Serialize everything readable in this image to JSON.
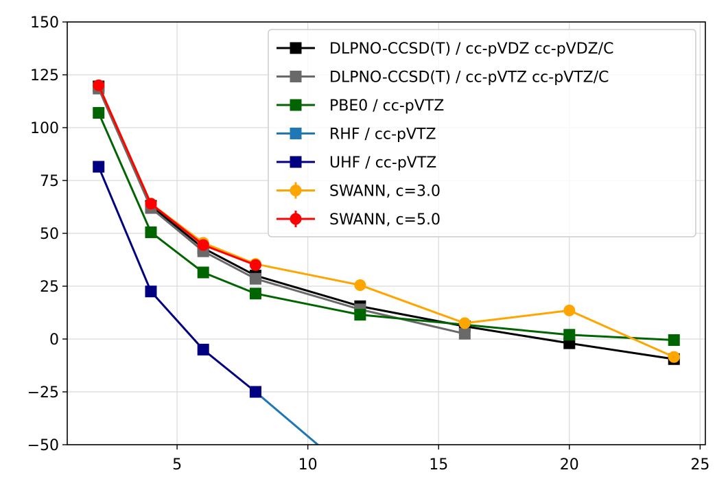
{
  "chart_data": {
    "type": "line",
    "title": "",
    "xlabel": "",
    "ylabel": "",
    "xlim": [
      0.8,
      25.2
    ],
    "ylim": [
      -50,
      150
    ],
    "xticks": [
      5,
      10,
      15,
      20,
      25
    ],
    "yticks": [
      -50,
      -25,
      0,
      25,
      50,
      75,
      100,
      125,
      150
    ],
    "xtick_labels": [
      "5",
      "10",
      "15",
      "20",
      "25"
    ],
    "ytick_labels": [
      "−50",
      "−25",
      "0",
      "25",
      "50",
      "75",
      "100",
      "125",
      "150"
    ],
    "grid": true,
    "legend_position": "top-right",
    "series": [
      {
        "name": "DLPNO-CCSD(T) / cc-pVDZ cc-pVDZ/C",
        "color": "#000000",
        "marker": "square",
        "x": [
          2,
          4,
          6,
          8,
          12,
          16,
          20,
          24
        ],
        "y": [
          119.5,
          63,
          43,
          30,
          15.5,
          6,
          -2,
          -9.5
        ]
      },
      {
        "name": "DLPNO-CCSD(T) / cc-pVTZ cc-pVTZ/C",
        "color": "#696969",
        "marker": "square",
        "x": [
          2,
          4,
          6,
          8,
          12,
          16
        ],
        "y": [
          118.5,
          62,
          41.5,
          28.5,
          14,
          2.5
        ]
      },
      {
        "name": "PBE0 / cc-pVTZ",
        "color": "#006400",
        "marker": "square",
        "x": [
          2,
          4,
          6,
          8,
          12,
          20,
          24
        ],
        "y": [
          107,
          50.5,
          31.5,
          21.5,
          11.5,
          2,
          -0.5
        ]
      },
      {
        "name": "RHF / cc-pVTZ",
        "color": "#1f77b4",
        "marker": "square",
        "x": [
          8,
          12
        ],
        "y": [
          -25,
          -67
        ]
      },
      {
        "name": "UHF / cc-pVTZ",
        "color": "#000080",
        "marker": "square",
        "x": [
          2,
          4,
          6,
          8
        ],
        "y": [
          81.5,
          22.5,
          -5,
          -25
        ]
      },
      {
        "name": "SWANN, c=3.0",
        "color": "#ffa500",
        "marker": "circle",
        "x": [
          2,
          4,
          6,
          8,
          12,
          16,
          20,
          24
        ],
        "y": [
          120,
          64,
          45.5,
          35.5,
          25.5,
          7.5,
          13.5,
          -8.5
        ]
      },
      {
        "name": "SWANN, c=5.0",
        "color": "#ff0000",
        "marker": "circle",
        "x": [
          2,
          4,
          6,
          8
        ],
        "y": [
          120,
          64,
          44.5,
          35
        ]
      }
    ]
  }
}
